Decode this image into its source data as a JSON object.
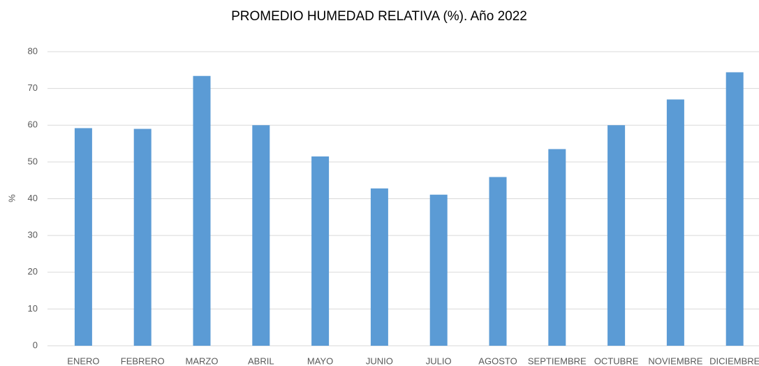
{
  "chart_data": {
    "type": "bar",
    "title": "PROMEDIO HUMEDAD RELATIVA (%). Año 2022",
    "y_label": "%",
    "categories": [
      "ENERO",
      "FEBRERO",
      "MARZO",
      "ABRIL",
      "MAYO",
      "JUNIO",
      "JULIO",
      "AGOSTO",
      "SEPTIEMBRE",
      "OCTUBRE",
      "NOVIEMBRE",
      "DICIEMBRE"
    ],
    "values": [
      59.2,
      59,
      73.4,
      60,
      51.5,
      42.8,
      41.1,
      45.9,
      53.5,
      60,
      67,
      74.4
    ],
    "color": "#5b9bd5",
    "ylim": [
      0,
      80
    ],
    "yticks": [
      0,
      10,
      20,
      30,
      40,
      50,
      60,
      70,
      80
    ],
    "grid": true
  }
}
